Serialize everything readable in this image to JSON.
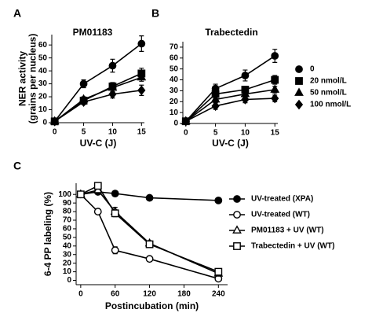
{
  "chart_data": [
    {
      "type": "line",
      "panel_label": "A",
      "title": "PM01183",
      "xlabel": "UV-C (J)",
      "ylabel": [
        "NER activity",
        "(grains per nucleus)"
      ],
      "x": [
        0,
        5,
        10,
        15
      ],
      "xlim": [
        -0.5,
        15.5
      ],
      "xticks": [
        0,
        5,
        10,
        15
      ],
      "ylim": [
        0,
        68
      ],
      "yticks": [
        0,
        10,
        20,
        30,
        40,
        50,
        60
      ],
      "series": [
        {
          "marker": "circle",
          "filled": true,
          "color": "#000000",
          "values": [
            1,
            30,
            44,
            61
          ],
          "errors": [
            1,
            3,
            5,
            6
          ]
        },
        {
          "marker": "square",
          "filled": true,
          "color": "#000000",
          "values": [
            1,
            17,
            28,
            38
          ],
          "errors": [
            1,
            2,
            3,
            4
          ]
        },
        {
          "marker": "triangle",
          "filled": true,
          "color": "#000000",
          "values": [
            1,
            18,
            27,
            35
          ],
          "errors": [
            1,
            2,
            3,
            3
          ]
        },
        {
          "marker": "diamond",
          "filled": true,
          "color": "#000000",
          "values": [
            1,
            16,
            22,
            25
          ],
          "errors": [
            1,
            2,
            3,
            4
          ]
        }
      ]
    },
    {
      "type": "line",
      "panel_label": "B",
      "title": "Trabectedin",
      "xlabel": "UV-C (J)",
      "x": [
        0,
        5,
        10,
        15
      ],
      "xlim": [
        -0.5,
        15.5
      ],
      "xticks": [
        0,
        5,
        10,
        15
      ],
      "ylim": [
        0,
        75
      ],
      "yticks": [
        0,
        10,
        20,
        30,
        40,
        50,
        60,
        70
      ],
      "legend": "right",
      "series": [
        {
          "name": "0",
          "marker": "circle",
          "filled": true,
          "color": "#000000",
          "values": [
            2,
            32,
            44,
            62
          ],
          "errors": [
            1,
            4,
            5,
            6
          ]
        },
        {
          "name": "20 nmol/L",
          "marker": "square",
          "filled": true,
          "color": "#000000",
          "values": [
            2,
            27,
            31,
            40
          ],
          "errors": [
            1,
            3,
            3,
            4
          ]
        },
        {
          "name": "50 nmol/L",
          "marker": "triangle",
          "filled": true,
          "color": "#000000",
          "values": [
            2,
            22,
            27,
            31
          ],
          "errors": [
            1,
            3,
            3,
            3
          ]
        },
        {
          "name": "100 nmol/L",
          "marker": "diamond",
          "filled": true,
          "color": "#000000",
          "values": [
            2,
            16,
            22,
            23
          ],
          "errors": [
            1,
            3,
            3,
            3
          ]
        }
      ]
    },
    {
      "type": "line",
      "panel_label": "C",
      "xlabel": "Postincubation (min)",
      "ylabel": [
        "6-4 PP labeling (%)"
      ],
      "x": [
        0,
        30,
        60,
        120,
        240
      ],
      "xlim": [
        -8,
        256
      ],
      "xticks": [
        0,
        60,
        120,
        180,
        240
      ],
      "ylim": [
        -5,
        113
      ],
      "yticks": [
        0,
        10,
        20,
        30,
        40,
        50,
        60,
        70,
        80,
        90,
        100
      ],
      "legend": "right",
      "series": [
        {
          "name": "UV-treated (XPA)",
          "marker": "circle",
          "filled": true,
          "color": "#000000",
          "values": [
            100,
            103,
            101,
            96,
            93
          ],
          "errors": [
            1,
            2,
            2,
            2,
            2
          ]
        },
        {
          "name": "UV-treated (WT)",
          "marker": "circle",
          "filled": false,
          "color": "#000000",
          "values": [
            100,
            80,
            35,
            25,
            2
          ],
          "errors": [
            1,
            2,
            4,
            3,
            1
          ]
        },
        {
          "name": "PM01183 + UV (WT)",
          "marker": "triangle",
          "filled": false,
          "color": "#000000",
          "values": [
            100,
            105,
            80,
            43,
            8
          ],
          "errors": [
            1,
            3,
            5,
            3,
            2
          ]
        },
        {
          "name": "Trabectedin + UV (WT)",
          "marker": "square",
          "filled": false,
          "color": "#000000",
          "values": [
            100,
            110,
            78,
            42,
            10
          ],
          "errors": [
            1,
            3,
            4,
            3,
            2
          ]
        }
      ]
    }
  ]
}
